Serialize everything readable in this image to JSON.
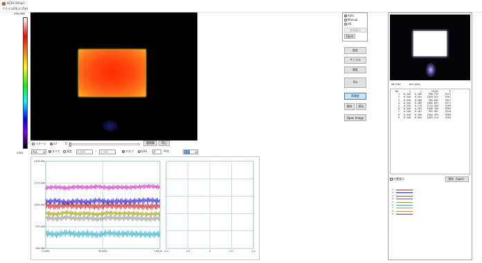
{
  "window": {
    "title": "ACES-1Chip?",
    "menu": [
      "ファイル(F)",
      "ヘルプ(H)"
    ]
  },
  "colorbar": {
    "top_label": "5984.668",
    "bottom_label": "0.000"
  },
  "thermal_controls": {
    "radio_image": "イメージ",
    "radio_cd": "cd",
    "slider_value": "0",
    "btn_continuous": "連続撮",
    "btn_stop": "停止"
  },
  "mode_panel": {
    "options": [
      "Auto",
      "Manual",
      "HS"
    ],
    "selected": "Auto",
    "disabled_btn": "全体表示",
    "btn_open": "Open"
  },
  "side_buttons": [
    "設定",
    "サンプル",
    "測定",
    "Go",
    "再測定",
    "保存",
    "読込",
    "Open Image"
  ],
  "active_button": "再測定",
  "controls_bar": {
    "select_all": "ALL",
    "radio_all": "すべて",
    "radio_set": "設定",
    "min_val": "0.000",
    "max_val": "0.000",
    "radio_b": "ホスブ",
    "radio_log": "LOG",
    "count": "0",
    "avg_label": "平均",
    "select_ch": "CH"
  },
  "chart_data": [
    {
      "type": "line",
      "title": "",
      "ylim": [
        900,
        1200
      ],
      "yticks": [
        "1200.000",
        "1125.000",
        "1050.000",
        "975.000",
        "900.000"
      ],
      "xticks": [
        "0.000s",
        "30.000s",
        "1m0.000s"
      ],
      "series": [
        {
          "color": "#e020d0",
          "values": [
            1109,
            1111,
            1108,
            1112,
            1110,
            1113,
            1109,
            1111,
            1110,
            1112,
            1114,
            1111
          ]
        },
        {
          "color": "#1a1aff",
          "values": [
            1061,
            1064,
            1059,
            1063,
            1060,
            1065,
            1061,
            1063,
            1062,
            1064,
            1066,
            1063
          ]
        },
        {
          "color": "#d12020",
          "values": [
            1048,
            1045,
            1049,
            1046,
            1047,
            1044,
            1048,
            1046,
            1047,
            1045,
            1044,
            1046
          ]
        },
        {
          "color": "#a0a000",
          "values": [
            1022,
            1018,
            1024,
            1019,
            1021,
            1017,
            1023,
            1020,
            1021,
            1019,
            1018,
            1020
          ]
        },
        {
          "color": "#9a9a9a",
          "values": [
            1006,
            1002,
            1007,
            1003,
            1005,
            1001,
            1006,
            1004,
            1005,
            1003,
            1002,
            1004
          ]
        },
        {
          "color": "#2ab0c8",
          "values": [
            952,
            948,
            954,
            949,
            951,
            947,
            953,
            950,
            951,
            949,
            948,
            950
          ]
        }
      ]
    },
    {
      "type": "scatter",
      "title": "",
      "xlim": [
        -0.2,
        0.2
      ],
      "ylim": [
        0,
        1
      ],
      "xticks": [
        "-0.2",
        "-0.1",
        "0",
        "0.1",
        "0.2"
      ],
      "points": []
    }
  ],
  "right_panel": {
    "info_left": "987/987",
    "info_right": "1m0.000s",
    "headers": [
      "No.",
      "x",
      "y",
      "cd/m2",
      "K"
    ],
    "rows": [
      [
        "1",
        "0.340",
        "0.289",
        "990.793",
        "9121"
      ],
      [
        "2",
        "0.340",
        "0.281",
        "1028.023",
        "9267"
      ],
      [
        "3",
        "0.340",
        "0.288",
        "996.682",
        "9317"
      ],
      [
        "4",
        "0.340",
        "0.289",
        "1009.891",
        "9271"
      ],
      [
        "5",
        "0.339",
        "0.278",
        "1115.305",
        "9259"
      ],
      [
        "6",
        "0.340",
        "0.283",
        "1056.785",
        "9269"
      ],
      [
        "7",
        "0.340",
        "0.287",
        "993.407",
        "9216"
      ],
      [
        "8",
        "0.340",
        "0.286",
        "1004.495",
        "9209"
      ],
      [
        "9",
        "0.340",
        "0.284",
        "1029.414",
        "9264"
      ]
    ],
    "checkbox_label": "位置表示",
    "save_label": "保存（Lpos）",
    "legend": [
      "1",
      "2",
      "3",
      "4",
      "5",
      "6",
      "7",
      "8",
      "9"
    ],
    "legend_colors": [
      "#d12020",
      "#1a1aff",
      "#1e9a1e",
      "#e020d0",
      "#a0a000",
      "#2ab0c8",
      "#9a9a9a",
      "#ff8c00",
      "#7b2fbf"
    ]
  },
  "colors": {
    "hot": "#ff4a0f",
    "accent_btn": "#cce4f7"
  }
}
